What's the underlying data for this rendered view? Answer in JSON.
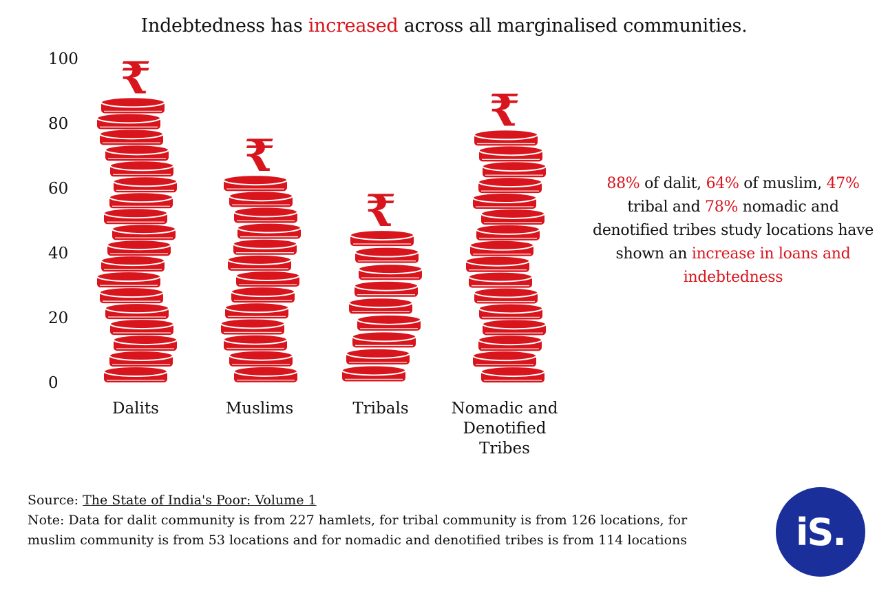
{
  "header": {
    "title_before": "Indebtedness has",
    "title_highlight": "increased",
    "title_after": "across all marginalised communities."
  },
  "annotation": {
    "p1": "88%",
    "t1": " of dalit, ",
    "p2": "64%",
    "t2": " of muslim, ",
    "p3": "47%",
    "t3": " tribal and ",
    "p4": "78%",
    "t4": " nomadic and denotified tribes study locations have shown an ",
    "highlight": "increase in loans and indebtedness"
  },
  "footer": {
    "source_label": "Source: ",
    "source_title": "The State of India's Poor: Volume 1",
    "note": "Note: Data for dalit community is from 227 hamlets, for tribal community is from 126 locations, for muslim community is from 53 locations and for nomadic and denotified tribes is from 114 locations"
  },
  "logo": {
    "text": "iS."
  },
  "colors": {
    "accent": "#d8141c",
    "logo_bg": "#1a2f9a"
  },
  "chart_data": {
    "type": "bar",
    "style": "stacked coin pictograph with rupee symbol on top",
    "categories": [
      [
        "Dalits"
      ],
      [
        "Muslims"
      ],
      [
        "Tribals"
      ],
      [
        "Nomadic and",
        "Denotified",
        "Tribes"
      ]
    ],
    "values": [
      88,
      64,
      47,
      78
    ],
    "yticks": [
      "0",
      "20",
      "40",
      "60",
      "80",
      "100"
    ],
    "ylim": [
      0,
      100
    ],
    "symbol": "₹",
    "grid": false,
    "color": "#d8141c"
  }
}
